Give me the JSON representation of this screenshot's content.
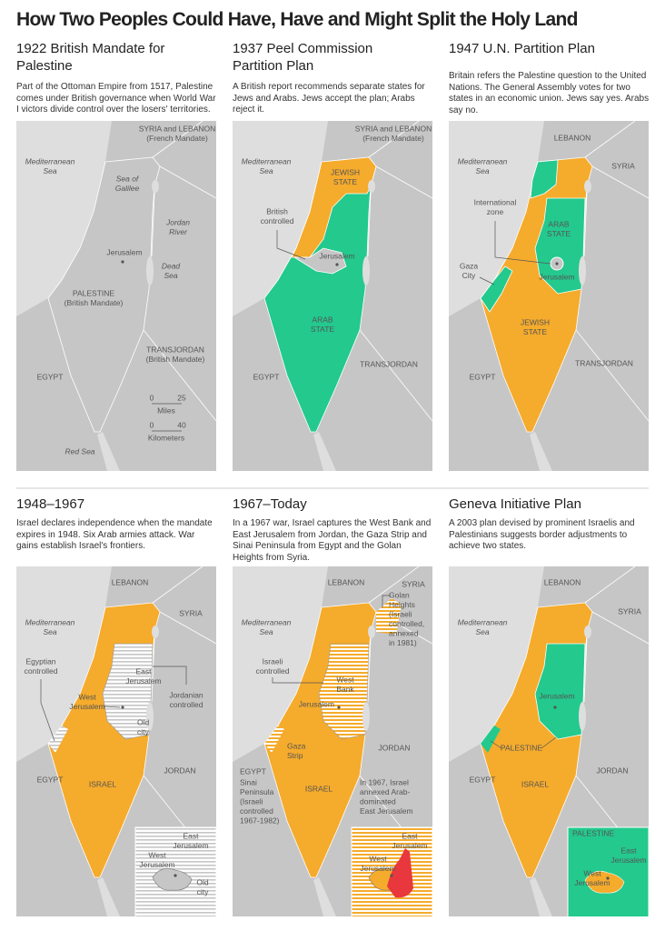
{
  "title": "How Two Peoples Could Have, Have and Might Split the Holy Land",
  "panels": [
    {
      "title": "1922 British Mandate for Palestine",
      "description": "Part of the Ottoman Empire from 1517, Palestine comes under British governance when World War I victors divide control over the losers' territories.",
      "labels": [
        [
          "SYRIA and LEBANON",
          "(French Mandate)"
        ],
        [
          "Mediterranean",
          "Sea"
        ],
        [
          "Sea of",
          "Galilee"
        ],
        [
          "Jordan",
          "River"
        ],
        [
          "Jerusalem"
        ],
        [
          "Dead",
          "Sea"
        ],
        [
          "PALESTINE",
          "(British Mandate)"
        ],
        [
          "TRANSJORDAN",
          "(British Mandate)"
        ],
        [
          "EGYPT"
        ],
        [
          "Red Sea"
        ]
      ],
      "scale": {
        "miles": {
          "ticks": [
            "0",
            "25"
          ],
          "unit": "Miles"
        },
        "kilometers": {
          "ticks": [
            "0",
            "40"
          ],
          "unit": "Kilometers"
        }
      }
    },
    {
      "title": "1937 Peel Commission Partition Plan",
      "description": "A British report recommends separate states for Jews and Arabs. Jews accept the plan; Arabs reject it.",
      "labels": [
        [
          "SYRIA and LEBANON",
          "(French Mandate)"
        ],
        [
          "Mediterranean",
          "Sea"
        ],
        [
          "JEWISH",
          "STATE"
        ],
        [
          "British",
          "controlled"
        ],
        [
          "Jerusalem"
        ],
        [
          "ARAB",
          "STATE"
        ],
        [
          "EGYPT"
        ],
        [
          "TRANSJORDAN"
        ]
      ]
    },
    {
      "title": "1947 U.N. Partition Plan",
      "description": "Britain refers the Palestine question to the United Nations. The General Assembly votes for two states in an economic union. Jews say yes. Arabs say no.",
      "labels": [
        [
          "LEBANON"
        ],
        [
          "SYRIA"
        ],
        [
          "Mediterranean",
          "Sea"
        ],
        [
          "International",
          "zone"
        ],
        [
          "ARAB",
          "STATE"
        ],
        [
          "Jerusalem"
        ],
        [
          "Gaza",
          "City"
        ],
        [
          "JEWISH",
          "STATE"
        ],
        [
          "EGYPT"
        ],
        [
          "TRANSJORDAN"
        ]
      ]
    },
    {
      "title": "1948–1967",
      "description": "Israel declares independence when the mandate expires in 1948. Six Arab armies attack. War gains establish Israel's frontiers.",
      "labels": [
        [
          "LEBANON"
        ],
        [
          "SYRIA"
        ],
        [
          "Mediterranean",
          "Sea"
        ],
        [
          "Egyptian",
          "controlled"
        ],
        [
          "West",
          "Jerusalem"
        ],
        [
          "East",
          "Jerusalem"
        ],
        [
          "Old",
          "city"
        ],
        [
          "Jordanian",
          "controlled"
        ],
        [
          "EGYPT"
        ],
        [
          "ISRAEL"
        ],
        [
          "JORDAN"
        ]
      ],
      "inset_labels": [
        [
          "East",
          "Jerusalem"
        ],
        [
          "West",
          "Jerusalem"
        ],
        [
          "Old",
          "city"
        ]
      ]
    },
    {
      "title": "1967–Today",
      "description": "In a 1967 war, Israel captures the West Bank and East Jerusalem from Jordan, the Gaza Strip and Sinai Peninsula from Egypt and the Golan Heights from Syria.",
      "labels": [
        [
          "LEBANON"
        ],
        [
          "SYRIA"
        ],
        [
          "Golan",
          "Heights",
          "(Israeli",
          "controlled,",
          "annexed",
          "in 1981)"
        ],
        [
          "Mediterranean",
          "Sea"
        ],
        [
          "Israeli",
          "controlled"
        ],
        [
          "West",
          "Bank"
        ],
        [
          "Jerusalem"
        ],
        [
          "Gaza",
          "Strip"
        ],
        [
          "EGYPT"
        ],
        [
          "Sinai",
          "Peninsula",
          "(Israeli",
          "controlled",
          "1967-1982)"
        ],
        [
          "ISRAEL"
        ],
        [
          "JORDAN"
        ],
        [
          "In 1967, Israel",
          "annexed Arab-",
          "dominated",
          "East Jerusalem"
        ]
      ],
      "inset_labels": [
        [
          "East",
          "Jerusalem"
        ],
        [
          "West",
          "Jerusalem"
        ]
      ]
    },
    {
      "title": "Geneva Initiative Plan",
      "description": "A 2003 plan devised by prominent Israelis and Palestinians suggests border adjustments to achieve two states.",
      "labels": [
        [
          "LEBANON"
        ],
        [
          "SYRIA"
        ],
        [
          "Mediterranean",
          "Sea"
        ],
        [
          "Jerusalem"
        ],
        [
          "PALESTINE"
        ],
        [
          "EGYPT"
        ],
        [
          "ISRAEL"
        ],
        [
          "JORDAN"
        ]
      ],
      "inset_labels": [
        [
          "PALESTINE"
        ],
        [
          "East",
          "Jerusalem"
        ],
        [
          "West",
          "Jerusalem"
        ]
      ]
    }
  ]
}
